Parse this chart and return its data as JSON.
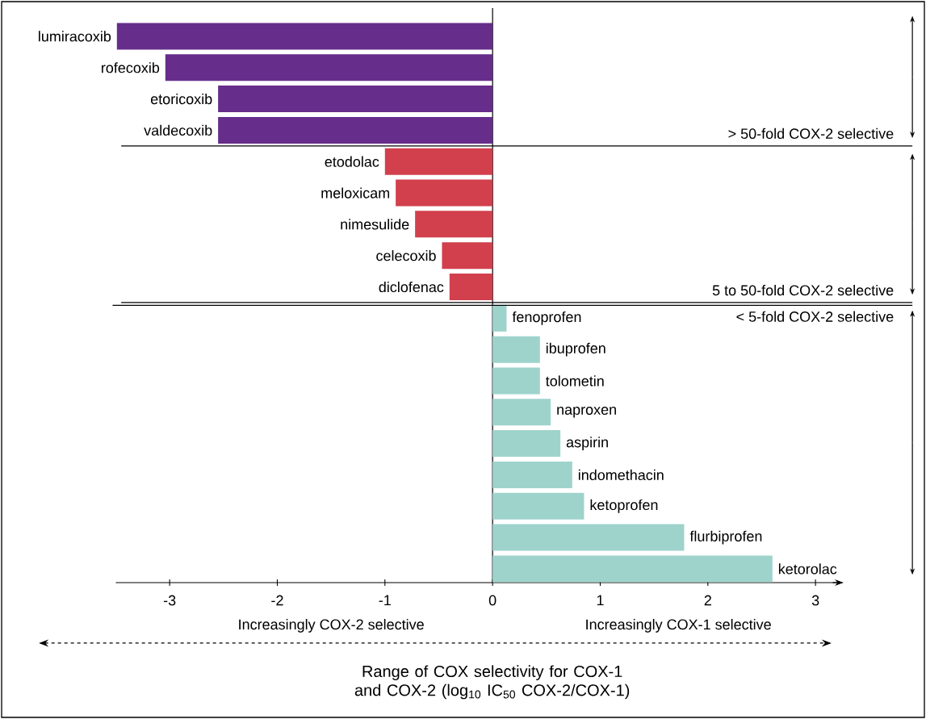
{
  "chart_data": {
    "type": "bar",
    "orientation": "horizontal",
    "xlabel": "Range of COX selectivity for COX-1 and COX-2 (log$_{10}$ IC$_{50}$ COX-2/COX-1)",
    "categories": [
      "lumiracoxib",
      "rofecoxib",
      "etoricoxib",
      "valdecoxib",
      "etodolac",
      "meloxicam",
      "nimesulide",
      "celecoxib",
      "diclofenac",
      "fenoprofen",
      "ibuprofen",
      "tolometin",
      "naproxen",
      "aspirin",
      "indomethacin",
      "ketoprofen",
      "flurbiprofen",
      "ketorolac"
    ],
    "values": [
      -3.49,
      -3.04,
      -2.55,
      -2.55,
      -1.0,
      -0.9,
      -0.72,
      -0.47,
      -0.4,
      0.13,
      0.44,
      0.44,
      0.54,
      0.63,
      0.74,
      0.85,
      1.78,
      2.6
    ],
    "colors": [
      "#662d8b",
      "#662d8b",
      "#662d8b",
      "#662d8b",
      "#d1404c",
      "#d1404c",
      "#d1404c",
      "#d1404c",
      "#d1404c",
      "#9ed3cc",
      "#9ed3cc",
      "#9ed3cc",
      "#9ed3cc",
      "#9ed3cc",
      "#9ed3cc",
      "#9ed3cc",
      "#9ed3cc",
      "#9ed3cc"
    ],
    "xlim": [
      -3.5,
      3.25
    ],
    "xticks": [
      -3,
      -2,
      -1,
      0,
      1,
      2,
      3
    ],
    "annotations": [
      "> 50-fold COX-2 selective",
      "5 to 50-fold COX-2 selective",
      "< 5-fold COX-2 selective",
      "Increasingly COX-2 selective",
      "Increasingly COX-1 selective"
    ]
  }
}
